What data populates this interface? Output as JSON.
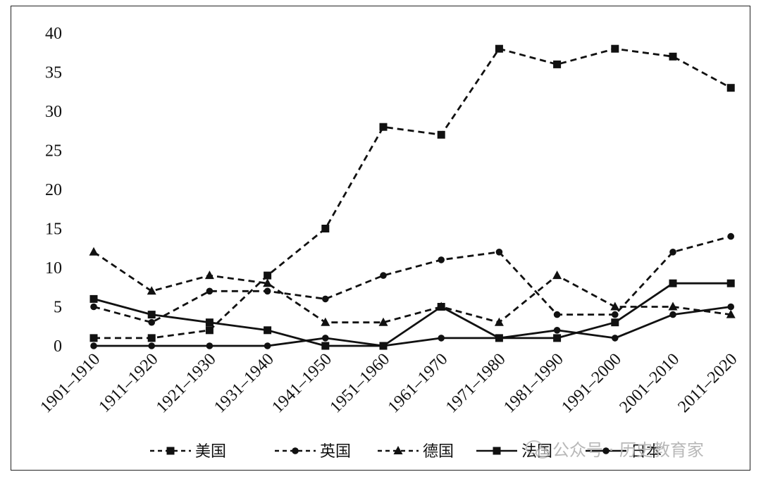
{
  "chart_data": {
    "type": "line",
    "title": "",
    "xlabel": "",
    "ylabel": "",
    "ylim": [
      0,
      40
    ],
    "yticks": [
      0,
      5,
      10,
      15,
      20,
      25,
      30,
      35,
      40
    ],
    "categories": [
      "1901–1910",
      "1911–1920",
      "1921–1930",
      "1931–1940",
      "1941–1950",
      "1951–1960",
      "1961–1970",
      "1971–1980",
      "1981–1990",
      "1991–2000",
      "2001–2010",
      "2011–2020"
    ],
    "series": [
      {
        "name": "美国",
        "marker": "square",
        "dash": "dashed",
        "values": [
          1,
          1,
          2,
          9,
          15,
          28,
          27,
          38,
          36,
          38,
          37,
          33
        ]
      },
      {
        "name": "英国",
        "marker": "circle",
        "dash": "dashed",
        "values": [
          5,
          3,
          7,
          7,
          6,
          9,
          11,
          12,
          4,
          4,
          12,
          14
        ]
      },
      {
        "name": "德国",
        "marker": "triangle",
        "dash": "dashed",
        "values": [
          12,
          7,
          9,
          8,
          3,
          3,
          5,
          3,
          9,
          5,
          5,
          4
        ]
      },
      {
        "name": "法国",
        "marker": "square",
        "dash": "solid",
        "values": [
          6,
          4,
          3,
          2,
          0,
          0,
          5,
          1,
          1,
          3,
          8,
          8
        ]
      },
      {
        "name": "日本",
        "marker": "circle",
        "dash": "solid",
        "values": [
          0,
          0,
          0,
          0,
          1,
          0,
          1,
          1,
          2,
          1,
          4,
          5
        ]
      }
    ],
    "legend_position": "bottom",
    "grid": false
  },
  "watermark": {
    "text": "公众号 · 历史教育家",
    "icon": "wechat-icon"
  }
}
